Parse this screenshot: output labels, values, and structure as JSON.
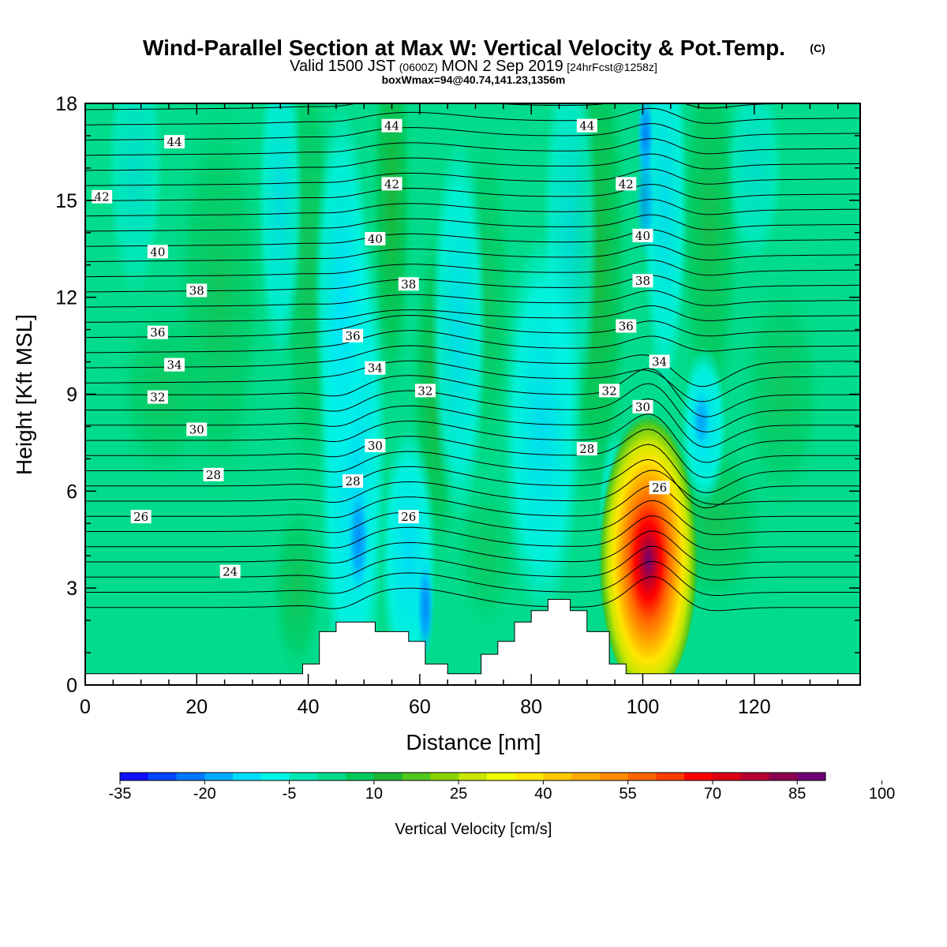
{
  "title": "Wind-Parallel Section at Max W: Vertical Velocity & Pot.Temp.",
  "title_mark": "(C)",
  "subtitle": {
    "valid": "Valid 1500 JST",
    "utc": "(0600Z)",
    "date": "MON 2 Sep 2019",
    "fcst": "[24hrFcst@1258z]"
  },
  "box_info": "boxWmax=94@40.74,141.23,1356m",
  "colorbar": {
    "title": "Vertical Velocity [cm/s]",
    "tick_labels": [
      "-35",
      "-20",
      "-5",
      "10",
      "25",
      "40",
      "55",
      "70",
      "85",
      "100"
    ],
    "colors": [
      "#1010ff",
      "#0044ff",
      "#0078ff",
      "#00aaff",
      "#00ddff",
      "#00f5e6",
      "#00e6b4",
      "#00dc8c",
      "#00c85a",
      "#1eb432",
      "#50c81e",
      "#8cd200",
      "#c8e600",
      "#f0ff00",
      "#ffe600",
      "#ffc800",
      "#ffaa00",
      "#ff8c00",
      "#ff6400",
      "#ff3c00",
      "#ff0000",
      "#dc0014",
      "#b40032",
      "#8c0050",
      "#6e0078"
    ]
  },
  "chart_data": {
    "type": "contour",
    "xlabel": "Distance [nm]",
    "ylabel": "Height [Kft MSL]",
    "xlim": [
      0,
      139
    ],
    "ylim": [
      0,
      18
    ],
    "xticks": [
      0,
      20,
      40,
      60,
      80,
      100,
      120
    ],
    "yticks": [
      0,
      3,
      6,
      9,
      12,
      15,
      18
    ],
    "filled_field": "Vertical Velocity [cm/s]",
    "contour_field": "Potential Temperature",
    "terrain_kft": [
      [
        0,
        0.35
      ],
      [
        39,
        0.35
      ],
      [
        39,
        0.65
      ],
      [
        42,
        0.65
      ],
      [
        42,
        1.65
      ],
      [
        45,
        1.65
      ],
      [
        45,
        1.95
      ],
      [
        52,
        1.95
      ],
      [
        52,
        1.65
      ],
      [
        58,
        1.65
      ],
      [
        58,
        1.35
      ],
      [
        61,
        1.35
      ],
      [
        61,
        0.65
      ],
      [
        65,
        0.65
      ],
      [
        65,
        0.35
      ],
      [
        71,
        0.35
      ],
      [
        71,
        0.95
      ],
      [
        74,
        0.95
      ],
      [
        74,
        1.35
      ],
      [
        77,
        1.35
      ],
      [
        77,
        1.95
      ],
      [
        80,
        1.95
      ],
      [
        80,
        2.3
      ],
      [
        83,
        2.3
      ],
      [
        83,
        2.65
      ],
      [
        87,
        2.65
      ],
      [
        87,
        2.3
      ],
      [
        90,
        2.3
      ],
      [
        90,
        1.65
      ],
      [
        94,
        1.65
      ],
      [
        94,
        0.65
      ],
      [
        97,
        0.65
      ],
      [
        97,
        0.35
      ],
      [
        139,
        0.35
      ]
    ],
    "wmax_cms": 94,
    "updraft_core": {
      "x": 101,
      "y_kft": 4.3
    },
    "contour_labels": [
      {
        "text": "44",
        "x": 16,
        "y": 16.8
      },
      {
        "text": "44",
        "x": 55,
        "y": 17.3
      },
      {
        "text": "44",
        "x": 90,
        "y": 17.3
      },
      {
        "text": "42",
        "x": 3,
        "y": 15.1
      },
      {
        "text": "42",
        "x": 55,
        "y": 15.5
      },
      {
        "text": "42",
        "x": 97,
        "y": 15.5
      },
      {
        "text": "40",
        "x": 13,
        "y": 13.4
      },
      {
        "text": "40",
        "x": 52,
        "y": 13.8
      },
      {
        "text": "40",
        "x": 100,
        "y": 13.9
      },
      {
        "text": "38",
        "x": 20,
        "y": 12.2
      },
      {
        "text": "38",
        "x": 58,
        "y": 12.4
      },
      {
        "text": "38",
        "x": 100,
        "y": 12.5
      },
      {
        "text": "36",
        "x": 13,
        "y": 10.9
      },
      {
        "text": "36",
        "x": 48,
        "y": 10.8
      },
      {
        "text": "36",
        "x": 97,
        "y": 11.1
      },
      {
        "text": "34",
        "x": 16,
        "y": 9.9
      },
      {
        "text": "34",
        "x": 52,
        "y": 9.8
      },
      {
        "text": "34",
        "x": 103,
        "y": 10.0
      },
      {
        "text": "32",
        "x": 13,
        "y": 8.9
      },
      {
        "text": "32",
        "x": 61,
        "y": 9.1
      },
      {
        "text": "32",
        "x": 94,
        "y": 9.1
      },
      {
        "text": "30",
        "x": 20,
        "y": 7.9
      },
      {
        "text": "30",
        "x": 52,
        "y": 7.4
      },
      {
        "text": "30",
        "x": 100,
        "y": 8.6
      },
      {
        "text": "28",
        "x": 23,
        "y": 6.5
      },
      {
        "text": "28",
        "x": 48,
        "y": 6.3
      },
      {
        "text": "28",
        "x": 90,
        "y": 7.3
      },
      {
        "text": "26",
        "x": 10,
        "y": 5.2
      },
      {
        "text": "26",
        "x": 58,
        "y": 5.2
      },
      {
        "text": "26",
        "x": 103,
        "y": 6.1
      },
      {
        "text": "24",
        "x": 26,
        "y": 3.5
      }
    ]
  }
}
